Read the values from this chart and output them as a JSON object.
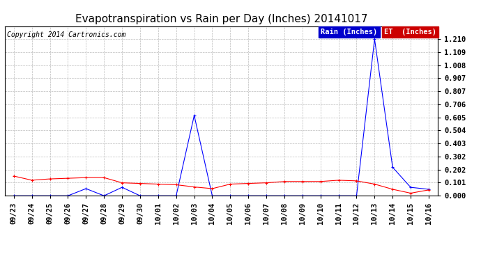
{
  "title": "Evapotranspiration vs Rain per Day (Inches) 20141017",
  "copyright": "Copyright 2014 Cartronics.com",
  "x_labels": [
    "09/23",
    "09/24",
    "09/25",
    "09/26",
    "09/27",
    "09/28",
    "09/29",
    "09/30",
    "10/01",
    "10/02",
    "10/03",
    "10/04",
    "10/05",
    "10/06",
    "10/07",
    "10/08",
    "10/09",
    "10/10",
    "10/11",
    "10/12",
    "10/13",
    "10/14",
    "10/15",
    "10/16"
  ],
  "rain_values": [
    0.0,
    0.0,
    0.0,
    0.0,
    0.055,
    0.0,
    0.065,
    0.0,
    0.0,
    0.0,
    0.62,
    0.0,
    0.0,
    0.0,
    0.0,
    0.0,
    0.0,
    0.0,
    0.0,
    0.0,
    1.21,
    0.22,
    0.065,
    0.05
  ],
  "et_values": [
    0.152,
    0.12,
    0.13,
    0.135,
    0.14,
    0.14,
    0.1,
    0.095,
    0.09,
    0.085,
    0.068,
    0.055,
    0.09,
    0.095,
    0.1,
    0.11,
    0.11,
    0.11,
    0.12,
    0.115,
    0.09,
    0.05,
    0.02,
    0.045
  ],
  "rain_color": "#0000FF",
  "et_color": "#FF0000",
  "bg_color": "#FFFFFF",
  "grid_color": "#BBBBBB",
  "ylim": [
    0.0,
    1.31
  ],
  "yticks": [
    0.0,
    0.101,
    0.202,
    0.302,
    0.403,
    0.504,
    0.605,
    0.706,
    0.807,
    0.907,
    1.008,
    1.109,
    1.21
  ],
  "legend_rain_bg": "#0000CC",
  "legend_et_bg": "#CC0000",
  "legend_rain_label": "Rain (Inches)",
  "legend_et_label": "ET  (Inches)",
  "title_fontsize": 11,
  "tick_fontsize": 7.5,
  "copyright_fontsize": 7
}
